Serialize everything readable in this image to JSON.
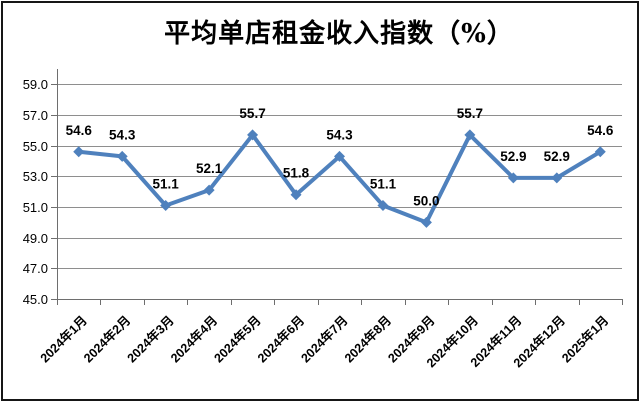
{
  "window": {
    "background": "#ffffff",
    "frame_border_color": "#161616"
  },
  "chart_data": {
    "type": "line",
    "title": "平均单店租金收入指数（%）",
    "xlabel": "",
    "ylabel": "",
    "categories": [
      "2024年1月",
      "2024年2月",
      "2024年3月",
      "2024年4月",
      "2024年5月",
      "2024年6月",
      "2024年7月",
      "2024年8月",
      "2024年9月",
      "2024年10月",
      "2024年11月",
      "2024年12月",
      "2025年1月"
    ],
    "values": [
      54.6,
      54.3,
      51.1,
      52.1,
      55.7,
      51.8,
      54.3,
      51.1,
      50.0,
      55.7,
      52.9,
      52.9,
      54.6
    ],
    "data_labels": [
      "54.6",
      "54.3",
      "51.1",
      "52.1",
      "55.7",
      "51.8",
      "54.3",
      "51.1",
      "50.0",
      "55.7",
      "52.9",
      "52.9",
      "54.6"
    ],
    "ylim": [
      45.0,
      60.0
    ],
    "yticks": [
      45.0,
      47.0,
      49.0,
      51.0,
      53.0,
      55.0,
      57.0,
      59.0
    ],
    "ytick_labels": [
      "45.0",
      "47.0",
      "49.0",
      "51.0",
      "53.0",
      "55.0",
      "57.0",
      "59.0"
    ],
    "grid": "horizontal-major",
    "legend": "none",
    "marker": "diamond",
    "x_label_rotation_deg": 45,
    "colors": {
      "line": "#4F81BD",
      "marker": "#4F81BD",
      "data_label": "#000000",
      "tick_label": "#000000",
      "gridline": "#8E8E8E",
      "axis": "#6E6E6E",
      "title": "#000000"
    }
  }
}
